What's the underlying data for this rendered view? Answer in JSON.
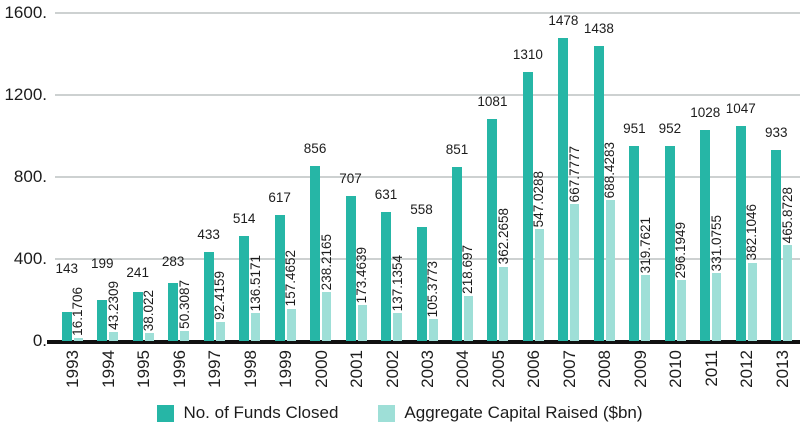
{
  "chart_data": {
    "type": "bar",
    "title": "",
    "categories": [
      "1993",
      "1994",
      "1995",
      "1996",
      "1997",
      "1998",
      "1999",
      "2000",
      "2001",
      "2002",
      "2003",
      "2004",
      "2005",
      "2006",
      "2007",
      "2008",
      "2009",
      "2010",
      "2011",
      "2012",
      "2013"
    ],
    "series": [
      {
        "name": "No. of Funds Closed",
        "color": "#26b6a6",
        "values": [
          143,
          199,
          241,
          283,
          433,
          514,
          617,
          856,
          707,
          631,
          558,
          851,
          1081,
          1310,
          1478,
          1438,
          951,
          952,
          1028,
          1047,
          933
        ]
      },
      {
        "name": "Aggregate Capital Raised ($bn)",
        "color": "#9edfd7",
        "values": [
          16.1706,
          43.2309,
          38.022,
          50.3087,
          92.4159,
          136.5171,
          157.4652,
          238.2165,
          173.4639,
          137.1354,
          105.3773,
          218.697,
          362.2658,
          547.0288,
          667.7777,
          688.4283,
          319.7621,
          296.1949,
          331.0755,
          382.1046,
          465.8728
        ]
      }
    ],
    "ylim": [
      0,
      1600
    ],
    "yticks": [
      {
        "value": 0,
        "label": "0."
      },
      {
        "value": 400,
        "label": "400."
      },
      {
        "value": 800,
        "label": "800."
      },
      {
        "value": 1200,
        "label": "1200."
      },
      {
        "value": 1600,
        "label": "1600."
      }
    ],
    "grid": true,
    "legend_position": "bottom",
    "bar_value_labels": true
  },
  "colors": {
    "background": "#ffffff",
    "grid": "#cdd1d1",
    "axis": "#111111",
    "text": "#1c1c1c",
    "series_dark": "#26b6a6",
    "series_light": "#9edfd7"
  }
}
